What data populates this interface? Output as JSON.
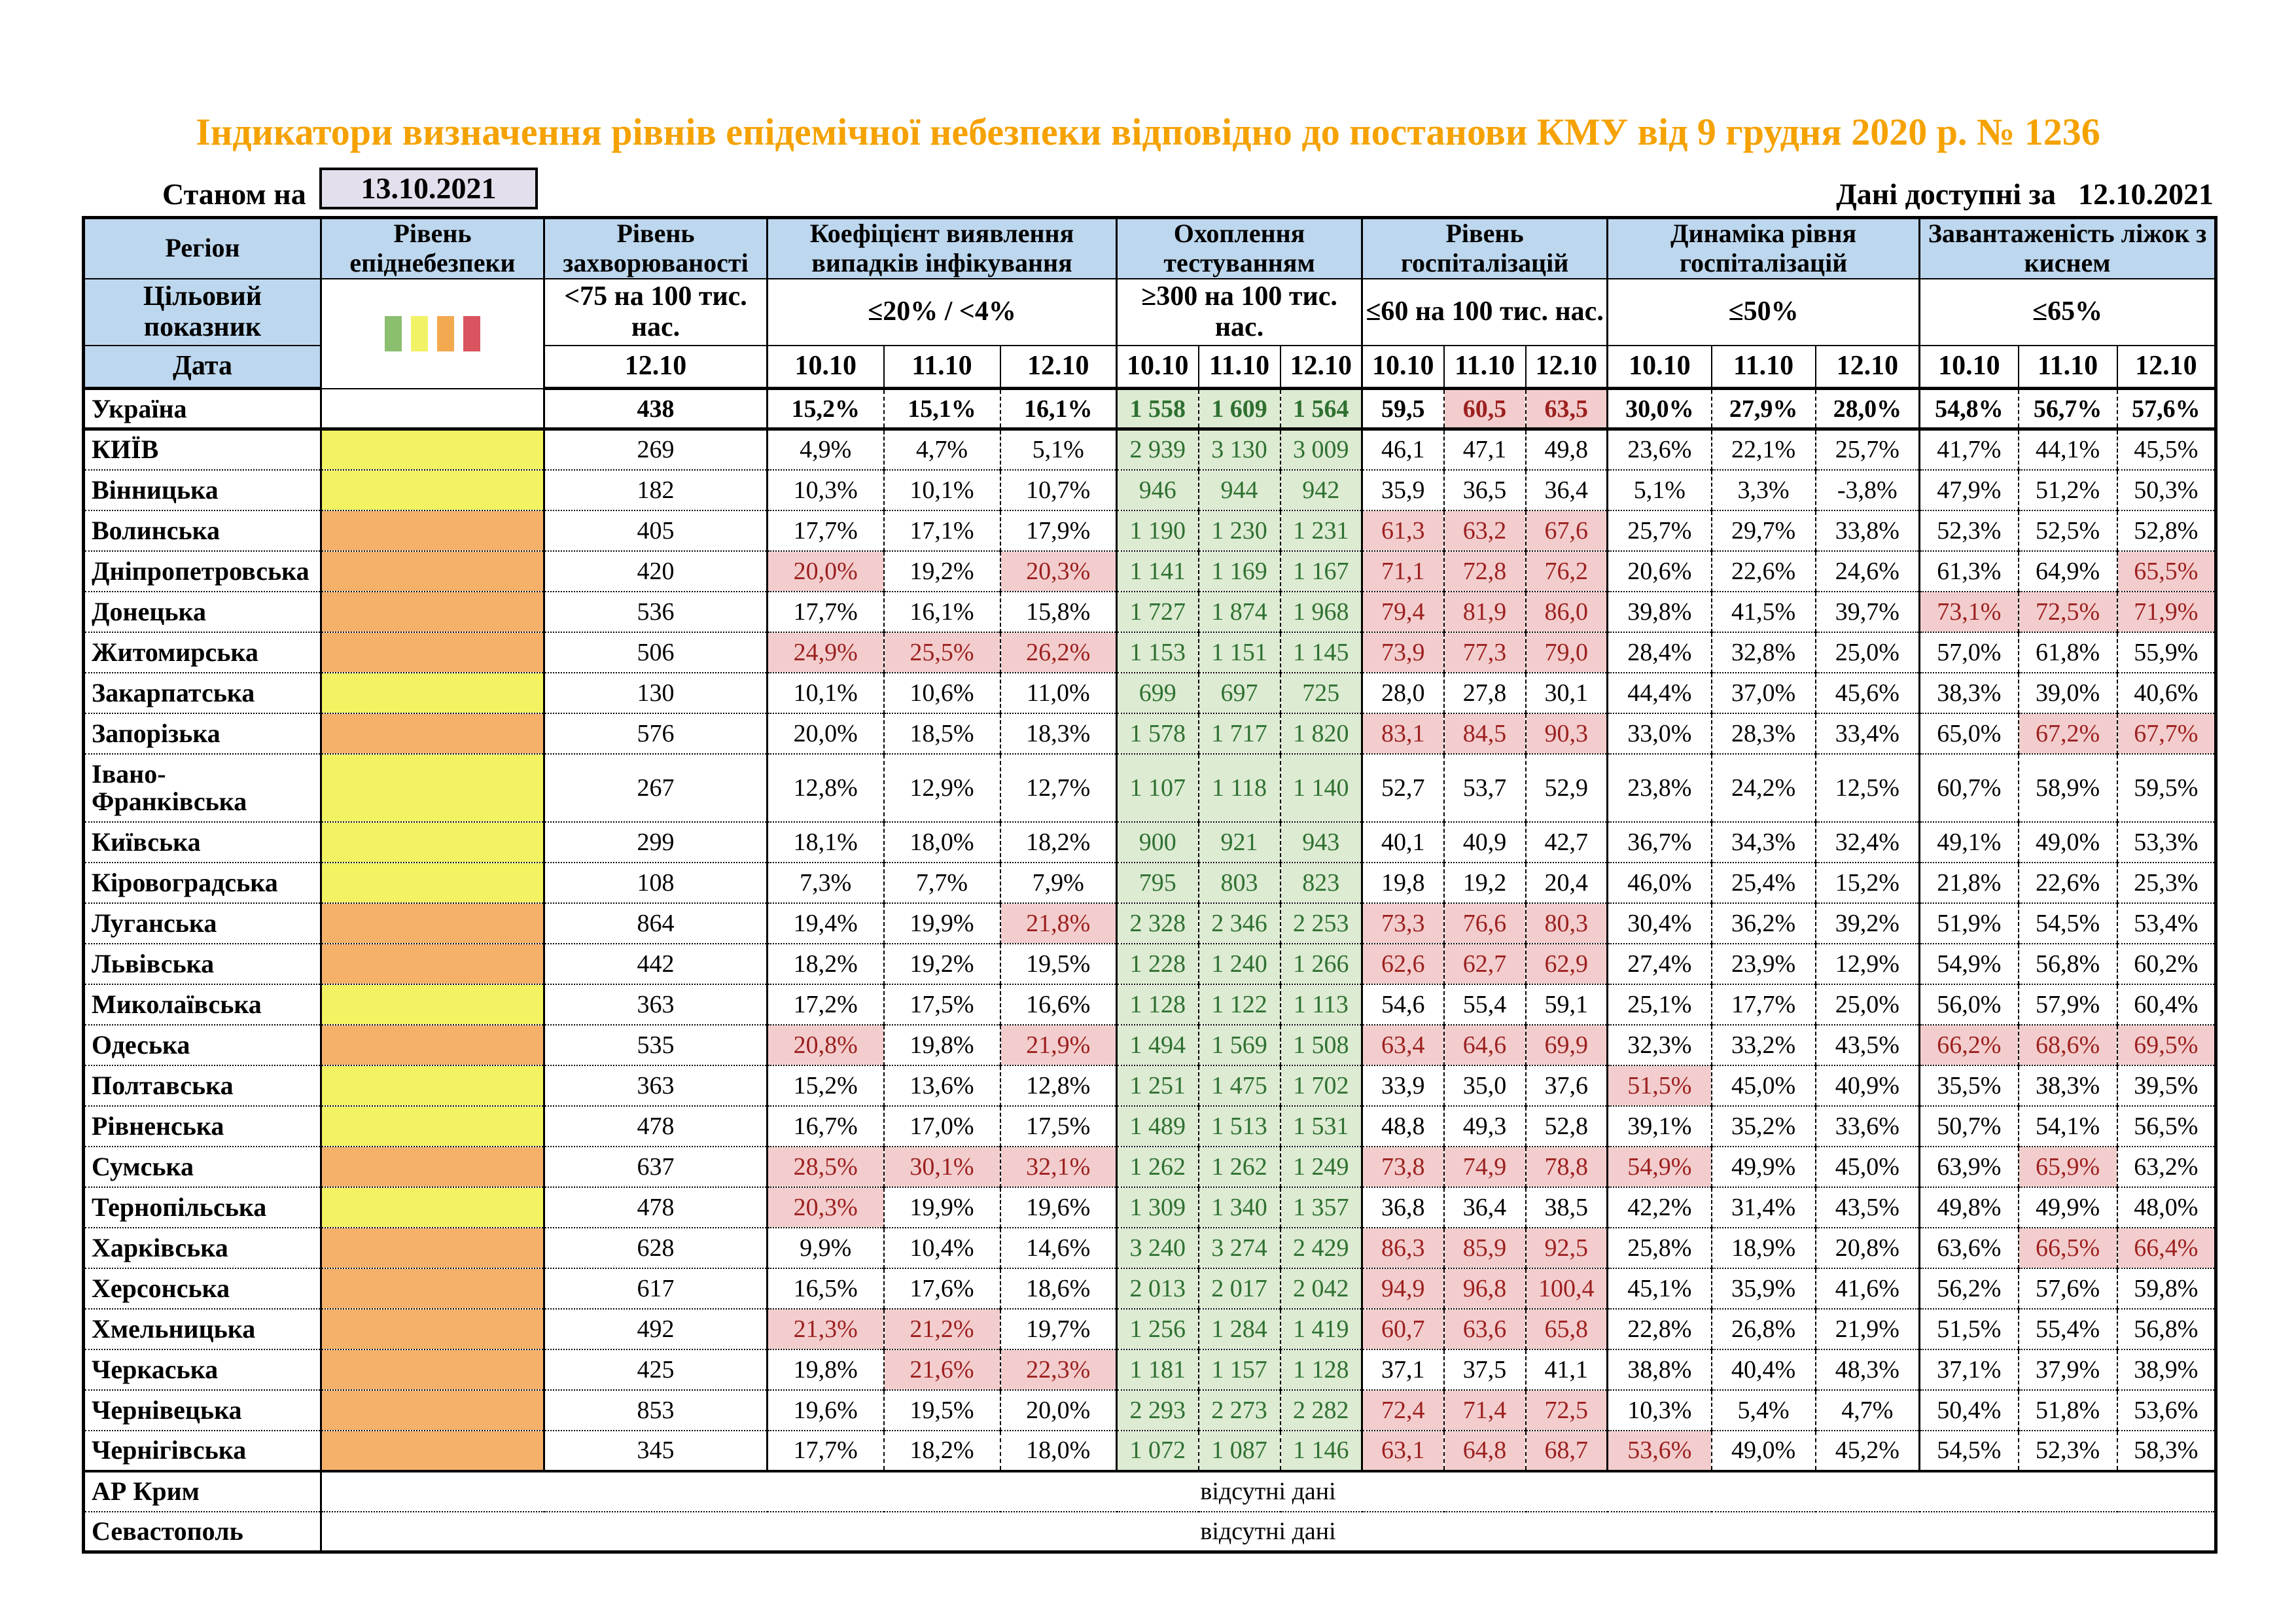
{
  "title": "Індикатори визначення рівнів епідемічної небезпеки відповідно до постанови КМУ від 9 грудня 2020 р. № 1236",
  "as_of_label": "Станом на",
  "as_of_date": "13.10.2021",
  "available_label": "Дані доступні за",
  "available_date": "12.10.2021",
  "absent_text": "відсутні дані",
  "colors": {
    "title_color": "#F5A201",
    "header_bg": "#BDD7EE",
    "date_box_bg": "#E4DFEC",
    "yellow": "#F2F262",
    "orange": "#F5B06A",
    "test_bg": "#DCEBD2",
    "test_text": "#2F7031",
    "alert_bg": "#F3CDCD",
    "alert_text": "#9C2020",
    "legend": [
      "#8CBE70",
      "#F2F266",
      "#F3A950",
      "#D9545E"
    ]
  },
  "header": {
    "col_region": "Регіон",
    "col_level": "Рівень епіднебезпеки",
    "col_incidence": "Рівень захворюваності",
    "col_detection": "Коефіцієнт виявлення випадків інфікування",
    "col_testing": "Охоплення тестуванням",
    "col_hosp": "Рівень госпіталізацій",
    "col_dynamics": "Динаміка рівня госпіталізацій",
    "col_beds": "Завантаженість ліжок з киснем",
    "row2_label": "Цільовий показник",
    "row3_label": "Дата",
    "target_incidence": "<75 на 100 тис. нас.",
    "target_detection": "≤20% / <4%",
    "target_testing": "≥300 на 100 тис. нас.",
    "target_hosp": "≤60 на 100 тис. нас.",
    "target_dynamics": "≤50%",
    "target_beds": "≤65%",
    "date_incidence": "12.10",
    "dates": [
      "10.10",
      "11.10",
      "12.10"
    ]
  },
  "rows": [
    {
      "region": "Україна",
      "level": null,
      "bold": true,
      "incidence": "438",
      "values": [
        "15,2%",
        "15,1%",
        "16,1%",
        "1 558",
        "1 609",
        "1 564",
        "59,5",
        "60,5",
        "63,5",
        "30,0%",
        "27,9%",
        "28,0%",
        "54,8%",
        "56,7%",
        "57,6%"
      ],
      "alerts": [
        7,
        8
      ]
    },
    {
      "region": "КИЇВ",
      "level": "yellow",
      "incidence": "269",
      "values": [
        "4,9%",
        "4,7%",
        "5,1%",
        "2 939",
        "3 130",
        "3 009",
        "46,1",
        "47,1",
        "49,8",
        "23,6%",
        "22,1%",
        "25,7%",
        "41,7%",
        "44,1%",
        "45,5%"
      ],
      "alerts": []
    },
    {
      "region": "Вінницька",
      "level": "yellow",
      "incidence": "182",
      "values": [
        "10,3%",
        "10,1%",
        "10,7%",
        "946",
        "944",
        "942",
        "35,9",
        "36,5",
        "36,4",
        "5,1%",
        "3,3%",
        "-3,8%",
        "47,9%",
        "51,2%",
        "50,3%"
      ],
      "alerts": []
    },
    {
      "region": "Волинська",
      "level": "orange",
      "incidence": "405",
      "values": [
        "17,7%",
        "17,1%",
        "17,9%",
        "1 190",
        "1 230",
        "1 231",
        "61,3",
        "63,2",
        "67,6",
        "25,7%",
        "29,7%",
        "33,8%",
        "52,3%",
        "52,5%",
        "52,8%"
      ],
      "alerts": [
        6,
        7,
        8
      ]
    },
    {
      "region": "Дніпропетровська",
      "level": "orange",
      "incidence": "420",
      "values": [
        "20,0%",
        "19,2%",
        "20,3%",
        "1 141",
        "1 169",
        "1 167",
        "71,1",
        "72,8",
        "76,2",
        "20,6%",
        "22,6%",
        "24,6%",
        "61,3%",
        "64,9%",
        "65,5%"
      ],
      "alerts": [
        0,
        2,
        6,
        7,
        8,
        14
      ]
    },
    {
      "region": "Донецька",
      "level": "orange",
      "incidence": "536",
      "values": [
        "17,7%",
        "16,1%",
        "15,8%",
        "1 727",
        "1 874",
        "1 968",
        "79,4",
        "81,9",
        "86,0",
        "39,8%",
        "41,5%",
        "39,7%",
        "73,1%",
        "72,5%",
        "71,9%"
      ],
      "alerts": [
        6,
        7,
        8,
        12,
        13,
        14
      ]
    },
    {
      "region": "Житомирська",
      "level": "orange",
      "incidence": "506",
      "values": [
        "24,9%",
        "25,5%",
        "26,2%",
        "1 153",
        "1 151",
        "1 145",
        "73,9",
        "77,3",
        "79,0",
        "28,4%",
        "32,8%",
        "25,0%",
        "57,0%",
        "61,8%",
        "55,9%"
      ],
      "alerts": [
        0,
        1,
        2,
        6,
        7,
        8
      ]
    },
    {
      "region": "Закарпатська",
      "level": "yellow",
      "incidence": "130",
      "values": [
        "10,1%",
        "10,6%",
        "11,0%",
        "699",
        "697",
        "725",
        "28,0",
        "27,8",
        "30,1",
        "44,4%",
        "37,0%",
        "45,6%",
        "38,3%",
        "39,0%",
        "40,6%"
      ],
      "alerts": []
    },
    {
      "region": "Запорізька",
      "level": "orange",
      "incidence": "576",
      "values": [
        "20,0%",
        "18,5%",
        "18,3%",
        "1 578",
        "1 717",
        "1 820",
        "83,1",
        "84,5",
        "90,3",
        "33,0%",
        "28,3%",
        "33,4%",
        "65,0%",
        "67,2%",
        "67,7%"
      ],
      "alerts": [
        6,
        7,
        8,
        13,
        14
      ]
    },
    {
      "region": "Івано-Франківська",
      "level": "yellow",
      "tall": true,
      "incidence": "267",
      "values": [
        "12,8%",
        "12,9%",
        "12,7%",
        "1 107",
        "1 118",
        "1 140",
        "52,7",
        "53,7",
        "52,9",
        "23,8%",
        "24,2%",
        "12,5%",
        "60,7%",
        "58,9%",
        "59,5%"
      ],
      "alerts": []
    },
    {
      "region": "Київська",
      "level": "yellow",
      "incidence": "299",
      "values": [
        "18,1%",
        "18,0%",
        "18,2%",
        "900",
        "921",
        "943",
        "40,1",
        "40,9",
        "42,7",
        "36,7%",
        "34,3%",
        "32,4%",
        "49,1%",
        "49,0%",
        "53,3%"
      ],
      "alerts": []
    },
    {
      "region": "Кіровоградська",
      "level": "yellow",
      "incidence": "108",
      "values": [
        "7,3%",
        "7,7%",
        "7,9%",
        "795",
        "803",
        "823",
        "19,8",
        "19,2",
        "20,4",
        "46,0%",
        "25,4%",
        "15,2%",
        "21,8%",
        "22,6%",
        "25,3%"
      ],
      "alerts": []
    },
    {
      "region": "Луганська",
      "level": "orange",
      "incidence": "864",
      "values": [
        "19,4%",
        "19,9%",
        "21,8%",
        "2 328",
        "2 346",
        "2 253",
        "73,3",
        "76,6",
        "80,3",
        "30,4%",
        "36,2%",
        "39,2%",
        "51,9%",
        "54,5%",
        "53,4%"
      ],
      "alerts": [
        2,
        6,
        7,
        8
      ]
    },
    {
      "region": "Львівська",
      "level": "orange",
      "incidence": "442",
      "values": [
        "18,2%",
        "19,2%",
        "19,5%",
        "1 228",
        "1 240",
        "1 266",
        "62,6",
        "62,7",
        "62,9",
        "27,4%",
        "23,9%",
        "12,9%",
        "54,9%",
        "56,8%",
        "60,2%"
      ],
      "alerts": [
        6,
        7,
        8
      ]
    },
    {
      "region": "Миколаївська",
      "level": "yellow",
      "incidence": "363",
      "values": [
        "17,2%",
        "17,5%",
        "16,6%",
        "1 128",
        "1 122",
        "1 113",
        "54,6",
        "55,4",
        "59,1",
        "25,1%",
        "17,7%",
        "25,0%",
        "56,0%",
        "57,9%",
        "60,4%"
      ],
      "alerts": []
    },
    {
      "region": "Одеська",
      "level": "orange",
      "incidence": "535",
      "values": [
        "20,8%",
        "19,8%",
        "21,9%",
        "1 494",
        "1 569",
        "1 508",
        "63,4",
        "64,6",
        "69,9",
        "32,3%",
        "33,2%",
        "43,5%",
        "66,2%",
        "68,6%",
        "69,5%"
      ],
      "alerts": [
        0,
        2,
        6,
        7,
        8,
        12,
        13,
        14
      ]
    },
    {
      "region": "Полтавська",
      "level": "yellow",
      "incidence": "363",
      "values": [
        "15,2%",
        "13,6%",
        "12,8%",
        "1 251",
        "1 475",
        "1 702",
        "33,9",
        "35,0",
        "37,6",
        "51,5%",
        "45,0%",
        "40,9%",
        "35,5%",
        "38,3%",
        "39,5%"
      ],
      "alerts": [
        9
      ]
    },
    {
      "region": "Рівненська",
      "level": "yellow",
      "incidence": "478",
      "values": [
        "16,7%",
        "17,0%",
        "17,5%",
        "1 489",
        "1 513",
        "1 531",
        "48,8",
        "49,3",
        "52,8",
        "39,1%",
        "35,2%",
        "33,6%",
        "50,7%",
        "54,1%",
        "56,5%"
      ],
      "alerts": []
    },
    {
      "region": "Сумська",
      "level": "orange",
      "incidence": "637",
      "values": [
        "28,5%",
        "30,1%",
        "32,1%",
        "1 262",
        "1 262",
        "1 249",
        "73,8",
        "74,9",
        "78,8",
        "54,9%",
        "49,9%",
        "45,0%",
        "63,9%",
        "65,9%",
        "63,2%"
      ],
      "alerts": [
        0,
        1,
        2,
        6,
        7,
        8,
        9,
        13
      ]
    },
    {
      "region": "Тернопільська",
      "level": "yellow",
      "incidence": "478",
      "values": [
        "20,3%",
        "19,9%",
        "19,6%",
        "1 309",
        "1 340",
        "1 357",
        "36,8",
        "36,4",
        "38,5",
        "42,2%",
        "31,4%",
        "43,5%",
        "49,8%",
        "49,9%",
        "48,0%"
      ],
      "alerts": [
        0
      ]
    },
    {
      "region": "Харківська",
      "level": "orange",
      "incidence": "628",
      "values": [
        "9,9%",
        "10,4%",
        "14,6%",
        "3 240",
        "3 274",
        "2 429",
        "86,3",
        "85,9",
        "92,5",
        "25,8%",
        "18,9%",
        "20,8%",
        "63,6%",
        "66,5%",
        "66,4%"
      ],
      "alerts": [
        6,
        7,
        8,
        13,
        14
      ]
    },
    {
      "region": "Херсонська",
      "level": "orange",
      "incidence": "617",
      "values": [
        "16,5%",
        "17,6%",
        "18,6%",
        "2 013",
        "2 017",
        "2 042",
        "94,9",
        "96,8",
        "100,4",
        "45,1%",
        "35,9%",
        "41,6%",
        "56,2%",
        "57,6%",
        "59,8%"
      ],
      "alerts": [
        6,
        7,
        8
      ]
    },
    {
      "region": "Хмельницька",
      "level": "orange",
      "incidence": "492",
      "values": [
        "21,3%",
        "21,2%",
        "19,7%",
        "1 256",
        "1 284",
        "1 419",
        "60,7",
        "63,6",
        "65,8",
        "22,8%",
        "26,8%",
        "21,9%",
        "51,5%",
        "55,4%",
        "56,8%"
      ],
      "alerts": [
        0,
        1,
        6,
        7,
        8
      ]
    },
    {
      "region": "Черкаська",
      "level": "orange",
      "incidence": "425",
      "values": [
        "19,8%",
        "21,6%",
        "22,3%",
        "1 181",
        "1 157",
        "1 128",
        "37,1",
        "37,5",
        "41,1",
        "38,8%",
        "40,4%",
        "48,3%",
        "37,1%",
        "37,9%",
        "38,9%"
      ],
      "alerts": [
        1,
        2
      ]
    },
    {
      "region": "Чернівецька",
      "level": "orange",
      "incidence": "853",
      "values": [
        "19,6%",
        "19,5%",
        "20,0%",
        "2 293",
        "2 273",
        "2 282",
        "72,4",
        "71,4",
        "72,5",
        "10,3%",
        "5,4%",
        "4,7%",
        "50,4%",
        "51,8%",
        "53,6%"
      ],
      "alerts": [
        6,
        7,
        8
      ]
    },
    {
      "region": "Чернігівська",
      "level": "orange",
      "incidence": "345",
      "values": [
        "17,7%",
        "18,2%",
        "18,0%",
        "1 072",
        "1 087",
        "1 146",
        "63,1",
        "64,8",
        "68,7",
        "53,6%",
        "49,0%",
        "45,2%",
        "54,5%",
        "52,3%",
        "58,3%"
      ],
      "alerts": [
        6,
        7,
        8,
        9
      ]
    },
    {
      "region": "АР Крим",
      "absent": true,
      "sep": true
    },
    {
      "region": "Севастополь",
      "absent": true
    }
  ]
}
